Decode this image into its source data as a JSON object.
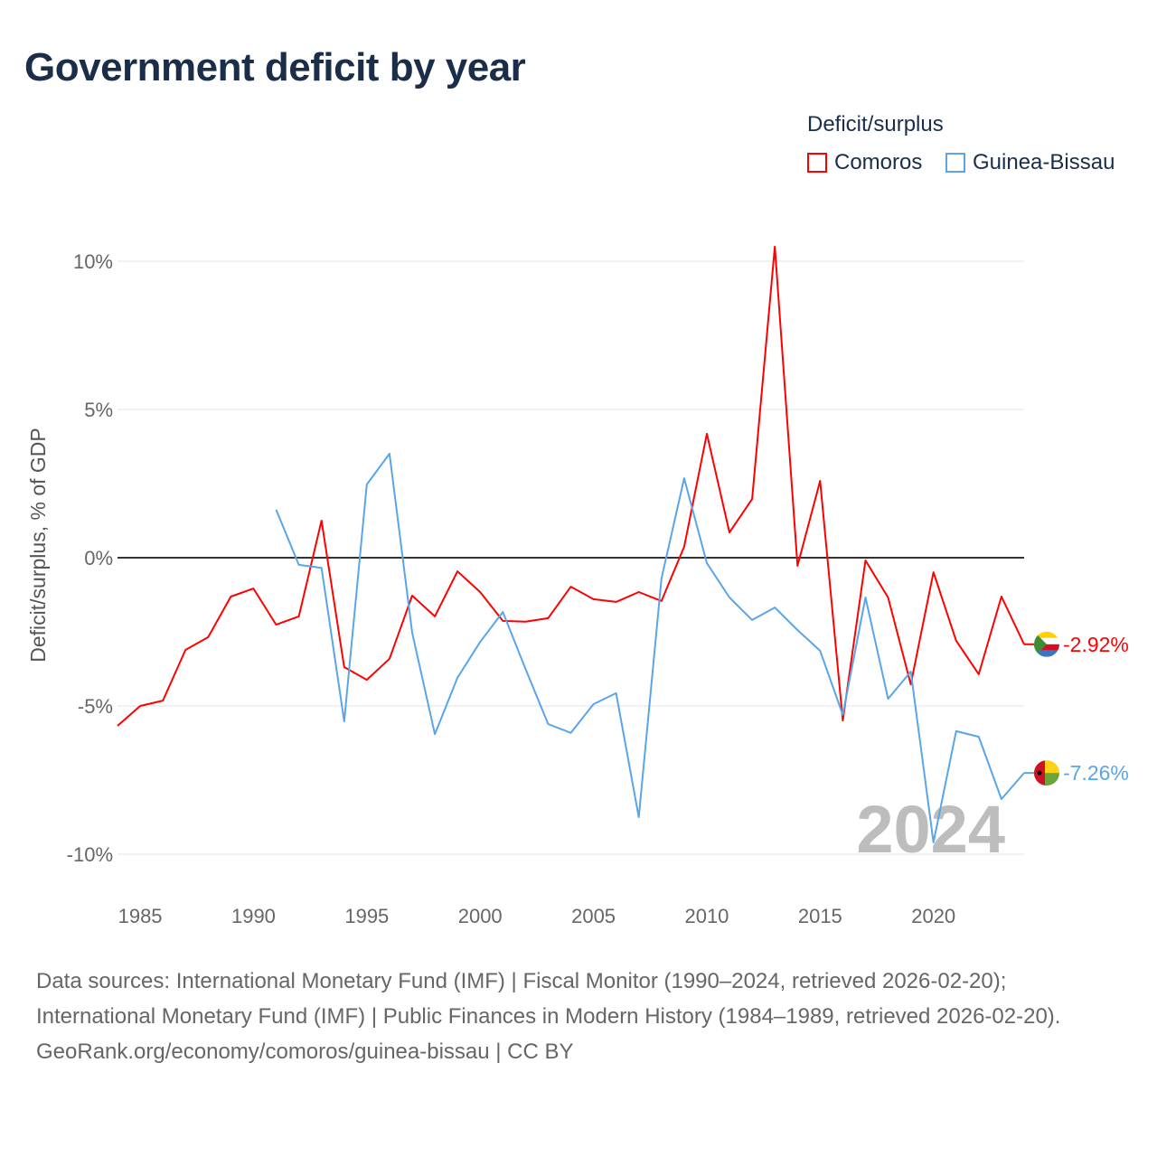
{
  "title": "Government deficit by year",
  "legend": {
    "title": "Deficit/surplus",
    "items": [
      {
        "label": "Comoros",
        "color": "#ff0000"
      },
      {
        "label": "Guinea-Bissau",
        "color": "#5aa5ea"
      }
    ]
  },
  "chart_data": {
    "type": "line",
    "title": "Government deficit by year",
    "ylabel": "Deficit/surplus, % of GDP",
    "xlabel": "",
    "xlim": [
      1984,
      2024
    ],
    "ylim": [
      -11,
      11
    ],
    "x_ticks": [
      1985,
      1990,
      1995,
      2000,
      2005,
      2010,
      2015,
      2020
    ],
    "y_ticks": [
      {
        "value": 10,
        "label": "10%"
      },
      {
        "value": 5,
        "label": "5%"
      },
      {
        "value": 0,
        "label": "0%"
      },
      {
        "value": -5,
        "label": "-5%"
      },
      {
        "value": -10,
        "label": "-10%"
      }
    ],
    "grid": true,
    "year_watermark": "2024",
    "series": [
      {
        "name": "Comoros",
        "color": "#ff0000",
        "end_label": "-2.92%",
        "x": [
          1984,
          1985,
          1986,
          1987,
          1988,
          1989,
          1990,
          1991,
          1992,
          1993,
          1994,
          1995,
          1996,
          1997,
          1998,
          1999,
          2000,
          2001,
          2002,
          2003,
          2004,
          2005,
          2006,
          2007,
          2008,
          2009,
          2010,
          2011,
          2012,
          2013,
          2014,
          2015,
          2016,
          2017,
          2018,
          2019,
          2020,
          2021,
          2022,
          2023,
          2024
        ],
        "values": [
          -5.67,
          -5.0,
          -4.82,
          -3.11,
          -2.68,
          -1.31,
          -1.04,
          -2.26,
          -1.98,
          1.25,
          -3.69,
          -4.12,
          -3.41,
          -1.28,
          -1.98,
          -0.46,
          -1.16,
          -2.13,
          -2.16,
          -2.04,
          -0.98,
          -1.4,
          -1.49,
          -1.16,
          -1.46,
          0.37,
          4.18,
          0.85,
          1.98,
          10.49,
          -0.27,
          2.59,
          -5.49,
          -0.09,
          -1.34,
          -4.27,
          -0.49,
          -2.8,
          -3.93,
          -1.31,
          -2.92
        ]
      },
      {
        "name": "Guinea-Bissau",
        "color": "#5aa5ea",
        "end_label": "-7.26%",
        "x": [
          1991,
          1992,
          1993,
          1994,
          1995,
          1996,
          1997,
          1998,
          1999,
          2000,
          2001,
          2002,
          2003,
          2004,
          2005,
          2006,
          2007,
          2008,
          2009,
          2010,
          2011,
          2012,
          2013,
          2014,
          2015,
          2016,
          2017,
          2018,
          2019,
          2020,
          2021,
          2022,
          2023,
          2024
        ],
        "values": [
          1.62,
          -0.24,
          -0.34,
          -5.52,
          2.47,
          3.51,
          -2.53,
          -5.95,
          -4.05,
          -2.84,
          -1.83,
          -3.75,
          -5.61,
          -5.91,
          -4.94,
          -4.57,
          -8.75,
          -0.7,
          2.68,
          -0.18,
          -1.34,
          -2.1,
          -1.68,
          -2.44,
          -3.14,
          -5.3,
          -1.34,
          -4.76,
          -3.84,
          -9.6,
          -5.85,
          -6.04,
          -8.14,
          -7.26
        ]
      }
    ]
  },
  "footer": {
    "sources": "Data sources: International Monetary Fund (IMF) | Fiscal Monitor (1990–2024, retrieved 2026-02-20); International Monetary Fund (IMF) | Public Finances in Modern History (1984–1989, retrieved 2026-02-20).",
    "credit": "GeoRank.org/economy/comoros/guinea-bissau | CC BY"
  }
}
